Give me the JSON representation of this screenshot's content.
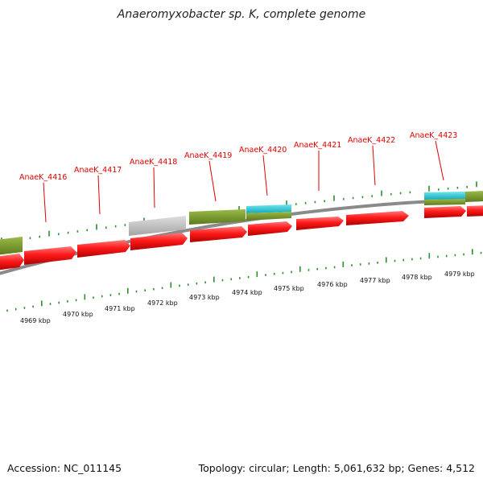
{
  "title": "Anaeromyxobacter sp. K, complete genome",
  "footer": {
    "accession": "Accession: NC_011145",
    "summary": "Topology: circular; Length: 5,061,632 bp; Genes: 4,512"
  },
  "colors": {
    "gene": "#ff1a1a",
    "cds_olive": "#7a9a2a",
    "cds_cyan": "#22c8d8",
    "pseudo_grey": "#b8b8b8",
    "backbone": "#8a8a8a",
    "ticks": "#2f8f2f",
    "label": "#e00000"
  },
  "scale_labels": [
    "4969 kbp",
    "4970 kbp",
    "4971 kbp",
    "4972 kbp",
    "4973 kbp",
    "4974 kbp",
    "4975 kbp",
    "4976 kbp",
    "4977 kbp",
    "4978 kbp",
    "4979 kbp"
  ],
  "gene_labels": [
    "AnaeK_4416",
    "AnaeK_4417",
    "AnaeK_4418",
    "AnaeK_4419",
    "AnaeK_4420",
    "AnaeK_4421",
    "AnaeK_4422",
    "AnaeK_4423"
  ]
}
